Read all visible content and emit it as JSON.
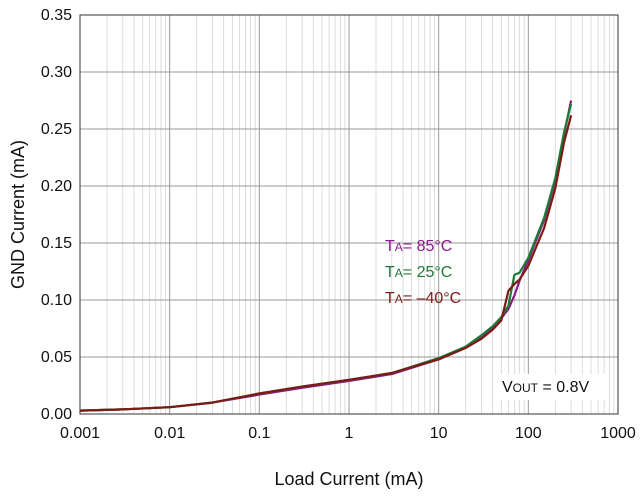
{
  "chart_data": {
    "type": "line",
    "title": "",
    "xlabel": "Load Current (mA)",
    "ylabel": "GND Current (mA)",
    "x_scale": "log",
    "xlim": [
      0.001,
      1000
    ],
    "ylim": [
      0.0,
      0.35
    ],
    "x_ticks": [
      "0.001",
      "0.01",
      "0.1",
      "1",
      "10",
      "100",
      "1000"
    ],
    "y_ticks": [
      "0.00",
      "0.05",
      "0.10",
      "0.15",
      "0.20",
      "0.25",
      "0.30",
      "0.35"
    ],
    "grid": true,
    "annotation": {
      "prefix": "V",
      "sub": "OUT",
      "suffix": " = 0.8V"
    },
    "series": [
      {
        "name": "TA = 85°C",
        "legend": {
          "prefix": "T",
          "sub": "A",
          "suffix": "= 85°C"
        },
        "color": "#8b1a8b",
        "x": [
          0.001,
          0.003,
          0.01,
          0.03,
          0.1,
          0.3,
          1,
          3,
          10,
          20,
          30,
          40,
          50,
          60,
          70,
          80,
          100,
          150,
          200,
          250,
          300
        ],
        "y": [
          0.003,
          0.004,
          0.006,
          0.01,
          0.017,
          0.023,
          0.029,
          0.035,
          0.048,
          0.058,
          0.068,
          0.076,
          0.084,
          0.092,
          0.104,
          0.117,
          0.135,
          0.17,
          0.205,
          0.245,
          0.275
        ]
      },
      {
        "name": "TA = 25°C",
        "legend": {
          "prefix": "T",
          "sub": "A",
          "suffix": "= 25°C"
        },
        "color": "#1e7a3a",
        "x": [
          0.001,
          0.003,
          0.01,
          0.03,
          0.1,
          0.3,
          1,
          3,
          10,
          20,
          30,
          40,
          50,
          60,
          70,
          80,
          100,
          150,
          200,
          250,
          300
        ],
        "y": [
          0.003,
          0.004,
          0.006,
          0.01,
          0.018,
          0.024,
          0.03,
          0.036,
          0.049,
          0.059,
          0.069,
          0.077,
          0.085,
          0.095,
          0.122,
          0.124,
          0.137,
          0.172,
          0.207,
          0.247,
          0.272
        ]
      },
      {
        "name": "TA = –40°C",
        "legend": {
          "prefix": "T",
          "sub": "A",
          "suffix": "= –40°C"
        },
        "color": "#7a1c14",
        "x": [
          0.001,
          0.003,
          0.01,
          0.03,
          0.1,
          0.3,
          1,
          3,
          10,
          20,
          30,
          40,
          50,
          60,
          70,
          80,
          100,
          150,
          200,
          250,
          300
        ],
        "y": [
          0.003,
          0.004,
          0.006,
          0.01,
          0.018,
          0.024,
          0.03,
          0.036,
          0.048,
          0.058,
          0.066,
          0.074,
          0.082,
          0.108,
          0.114,
          0.118,
          0.13,
          0.163,
          0.198,
          0.238,
          0.262
        ]
      }
    ]
  }
}
